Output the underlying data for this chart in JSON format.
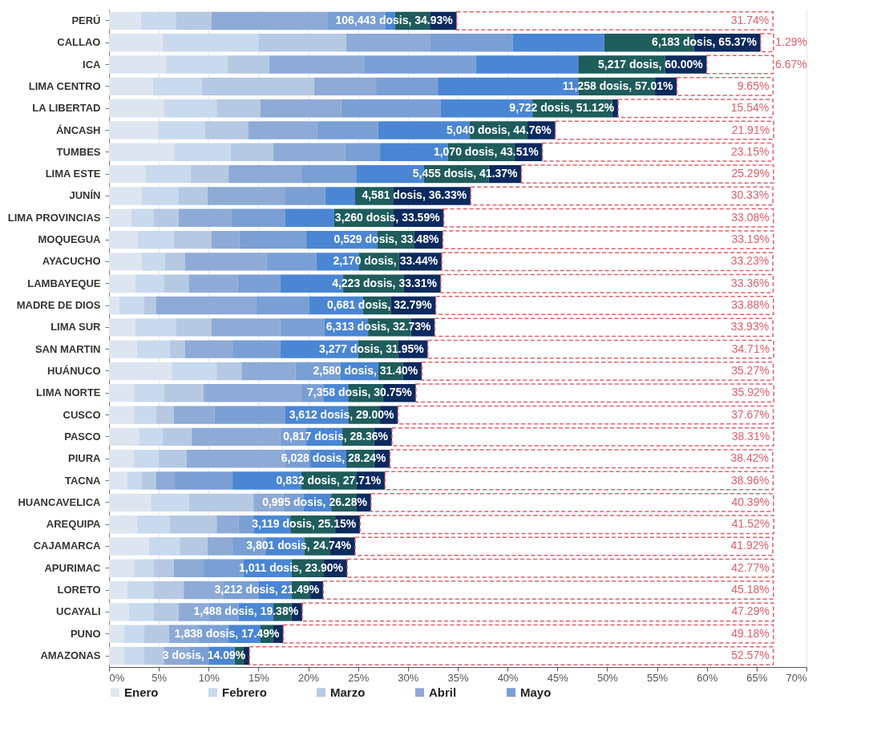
{
  "chart_data": {
    "type": "bar",
    "orientation": "horizontal",
    "stacked": true,
    "legend": "bottom",
    "grid": "x",
    "categories": [
      "PERÚ",
      "CALLAO",
      "ICA",
      "LIMA CENTRO",
      "LA LIBERTAD",
      "ÁNCASH",
      "TUMBES",
      "LIMA ESTE",
      "JUNÍN",
      "LIMA PROVINCIAS",
      "MOQUEGUA",
      "AYACUCHO",
      "LAMBAYEQUE",
      "MADRE DE DIOS",
      "LIMA SUR",
      "SAN MARTIN",
      "HUÁNUCO",
      "LIMA NORTE",
      "CUSCO",
      "PASCO",
      "PIURA",
      "TACNA",
      "HUANCAVELICA",
      "AREQUIPA",
      "CAJAMARCA",
      "APURIMAC",
      "LORETO",
      "UCAYALI",
      "PUNO",
      "AMAZONAS"
    ],
    "xlim": [
      0,
      70
    ],
    "xticks": [
      {
        "value": 0,
        "label": "0%"
      },
      {
        "value": 5,
        "label": "5%"
      },
      {
        "value": 10,
        "label": "10%"
      },
      {
        "value": 15,
        "label": "15%"
      },
      {
        "value": 20,
        "label": "20%"
      },
      {
        "value": 25,
        "label": "25%"
      },
      {
        "value": 30,
        "label": "30%"
      },
      {
        "value": 35,
        "label": "35%"
      },
      {
        "value": 40,
        "label": "40%"
      },
      {
        "value": 45,
        "label": "45%"
      },
      {
        "value": 50,
        "label": "50%"
      },
      {
        "value": 55,
        "label": "55%"
      },
      {
        "value": 60,
        "label": "60%"
      },
      {
        "value": 65,
        "label": "65%"
      },
      {
        "value": 70,
        "label": "70%"
      }
    ],
    "series": [
      {
        "name": "Enero",
        "color": "#dde6f0",
        "values": [
          3.2,
          5.4,
          5.7,
          4.4,
          5.5,
          4.9,
          6.5,
          3.7,
          3.3,
          2.2,
          2.9,
          3.3,
          2.6,
          1,
          2.6,
          2.8,
          6.3,
          2.5,
          2.5,
          3,
          2.5,
          1.8,
          4.2,
          2.8,
          4,
          2.5,
          1.8,
          2,
          1.5,
          1.5
        ]
      },
      {
        "name": "Febrero",
        "color": "#c9d9ee",
        "values": [
          3.5,
          9.6,
          6.2,
          4.9,
          5.3,
          4.7,
          5.7,
          4.5,
          3.7,
          2.3,
          3.6,
          2.3,
          2.9,
          2.5,
          4.1,
          3.3,
          4.5,
          3,
          2.2,
          2.4,
          2.5,
          1.5,
          3.8,
          3.3,
          3.1,
          2,
          2.7,
          2.5,
          2,
          2
        ]
      },
      {
        "name": "Marzo",
        "color": "#b6c9e3",
        "values": [
          3.6,
          8.8,
          4.2,
          11.3,
          4.4,
          4.4,
          4.3,
          3.8,
          2.9,
          2.5,
          3.8,
          2,
          2.5,
          1.2,
          3.6,
          1.5,
          2.5,
          4,
          1.8,
          2.9,
          2.8,
          1.4,
          6.5,
          4.7,
          2.8,
          2,
          3,
          2.5,
          2.5,
          2
        ]
      },
      {
        "name": "Abril",
        "color": "#8eaad6",
        "values": [
          11.6,
          8.4,
          9.5,
          6.2,
          8.1,
          6.9,
          7.2,
          7.3,
          7.8,
          5.3,
          2.8,
          8.2,
          4.9,
          10.1,
          6.9,
          4.8,
          5.4,
          9.8,
          4.1,
          8.9,
          9.9,
          1.9,
          3,
          2.2,
          2.5,
          3,
          4,
          3,
          3,
          2.5
        ]
      },
      {
        "name": "Mayo",
        "color": "#7a9fd4",
        "values": [
          5.8,
          8.3,
          11.2,
          6.2,
          10,
          6.1,
          3.5,
          5.5,
          4,
          5.4,
          6.7,
          5,
          4.3,
          5.3,
          4.4,
          4.8,
          4.5,
          2.2,
          7.1,
          2.6,
          2.5,
          5.8,
          2,
          1.5,
          3.3,
          4,
          3.5,
          3,
          3,
          2
        ]
      },
      {
        "color": "#4a86d4",
        "values": [
          1,
          9.2,
          10.3,
          14.1,
          9.2,
          9.2,
          6.8,
          6.8,
          3,
          4.9,
          7.1,
          4.3,
          6.3,
          5.4,
          4.4,
          7.8,
          3.8,
          2.5,
          6.3,
          3.6,
          3.6,
          6.9,
          2.8,
          3.7,
          3.9,
          4.8,
          3.3,
          3.5,
          3.2,
          2.6
        ]
      },
      {
        "color": "#1f5c5c",
        "values": [
          3.5,
          9,
          8.7,
          7.7,
          8,
          5.8,
          6.7,
          6.5,
          3.8,
          5.9,
          3.7,
          4,
          6.1,
          2.8,
          4.3,
          4,
          2.5,
          3.5,
          3.2,
          3.2,
          2.8,
          5.5,
          2.5,
          4.5,
          2.6,
          3.2,
          1.9,
          1.8,
          1.3,
          0.9
        ]
      },
      {
        "color": "#0b2a5e",
        "values": [
          2.7,
          6.7,
          4.2,
          2.2,
          0.6,
          2.8,
          2.8,
          3.3,
          7.8,
          5.1,
          2.9,
          4.3,
          3.7,
          4.5,
          2.4,
          3.0,
          1.9,
          3.3,
          1.8,
          1.8,
          1.6,
          2.9,
          1.5,
          2.5,
          2.5,
          2.4,
          1.3,
          1.1,
          1.0,
          0.6
        ]
      },
      {
        "color": "#e0606a",
        "line_style": "dashed",
        "values": [
          31.74,
          1.29,
          6.67,
          9.65,
          15.54,
          21.91,
          23.15,
          25.29,
          30.33,
          33.08,
          33.19,
          33.23,
          33.36,
          33.88,
          33.93,
          34.71,
          35.27,
          35.92,
          37.67,
          38.31,
          38.42,
          38.96,
          40.39,
          41.52,
          41.92,
          42.77,
          45.18,
          47.29,
          49.18,
          52.57
        ],
        "value_labels": [
          "31.74%",
          "1.29%",
          "6.67%",
          "9.65%",
          "15.54%",
          "21.91%",
          "23.15%",
          "25.29%",
          "30.33%",
          "33.08%",
          "33.19%",
          "33.23%",
          "33.36%",
          "33.88%",
          "33.93%",
          "34.71%",
          "35.27%",
          "35.92%",
          "37.67%",
          "38.31%",
          "38.42%",
          "38.96%",
          "40.39%",
          "41.52%",
          "41.92%",
          "42.77%",
          "45.18%",
          "47.29%",
          "49.18%",
          "52.57%"
        ]
      }
    ],
    "totals": [
      "106,443 dosis, 34.93%",
      "6,183 dosis, 65.37%",
      "5,217 dosis, 60.00%",
      "11,258 dosis, 57.01%",
      "9,722 dosis, 51.12%",
      "5,040 dosis, 44.76%",
      "1,070 dosis, 43.51%",
      "5,455 dosis, 41.37%",
      "4,581 dosis, 36.33%",
      "3,260 dosis, 33.59%",
      "0,529 dosis, 33.48%",
      "2,170 dosis, 33.44%",
      "4,223 dosis, 33.31%",
      "0,681 dosis, 32.79%",
      "6,313 dosis, 32.73%",
      "3,277 dosis, 31.95%",
      "2,580 dosis, 31.40%",
      "7,358 dosis, 30.75%",
      "3,612 dosis, 29.00%",
      "0,817 dosis, 28.36%",
      "6,028 dosis, 28.24%",
      "0,832 dosis, 27.71%",
      "0,995 dosis, 26.28%",
      "3,119 dosis, 25.15%",
      "3,801 dosis, 24.74%",
      "1,011 dosis, 23.90%",
      "3,212 dosis, 21.49%",
      "1,488 dosis, 19.38%",
      "1,838 dosis, 17.49%",
      "3 dosis, 14.09%"
    ]
  }
}
